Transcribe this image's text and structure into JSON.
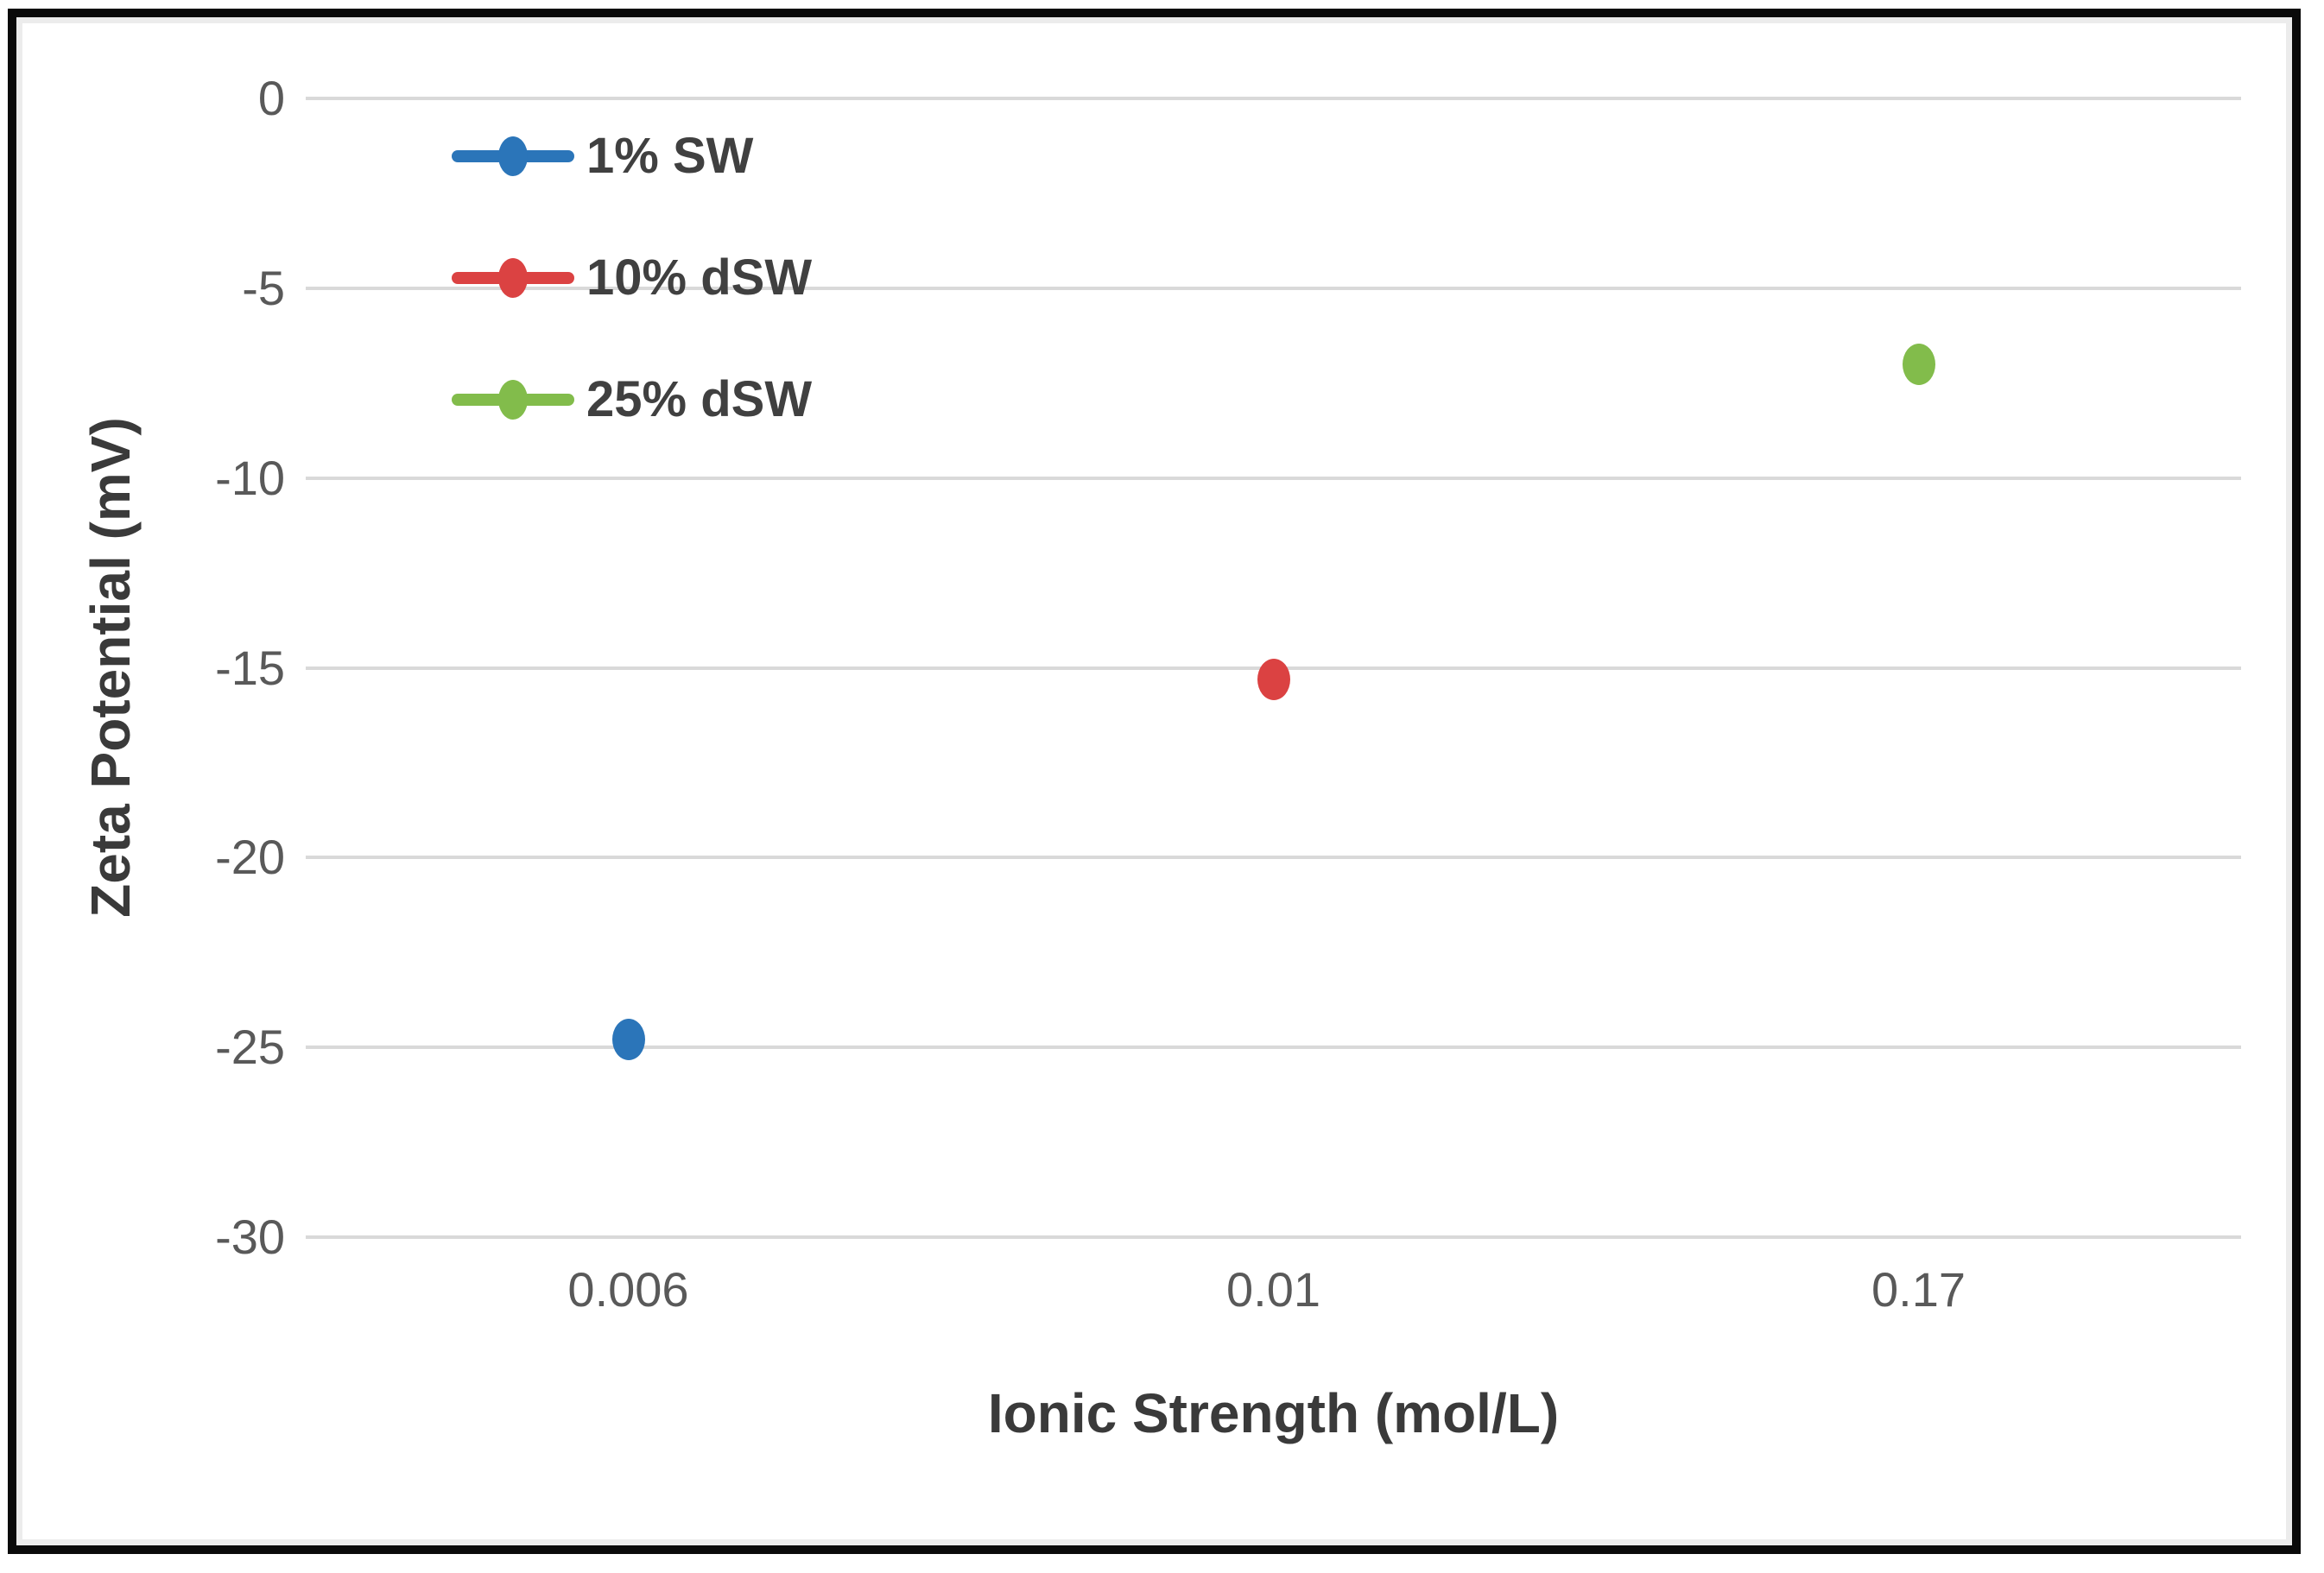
{
  "chart_data": {
    "type": "scatter",
    "title": "",
    "xlabel": "Ionic Strength (mol/L)",
    "ylabel": "Zeta Potential (mV)",
    "categories": [
      "0.006",
      "0.01",
      "0.17"
    ],
    "yticks": [
      0,
      -5,
      -10,
      -15,
      -20,
      -25,
      -30
    ],
    "ylim": [
      0,
      -30
    ],
    "grid": "horizontal",
    "legend_position": "top-left-inside",
    "marker_shape": "oval",
    "legend_key_style": "line-with-marker",
    "series": [
      {
        "name": "1% SW",
        "color": "#2b75b9",
        "category": "0.006",
        "x_index": 0,
        "value": -24.8
      },
      {
        "name": "10% dSW",
        "color": "#db4242",
        "category": "0.01",
        "x_index": 1,
        "value": -15.3
      },
      {
        "name": "25% dSW",
        "color": "#82bc4b",
        "category": "0.17",
        "x_index": 2,
        "value": -7.0
      }
    ],
    "colors": {
      "gridline": "#d9d9d9",
      "tick_label": "#595959",
      "axis_title": "#3a3a3a",
      "legend_text": "#404040",
      "frame_border": "#0a0a0a",
      "background": "#ffffff"
    }
  }
}
